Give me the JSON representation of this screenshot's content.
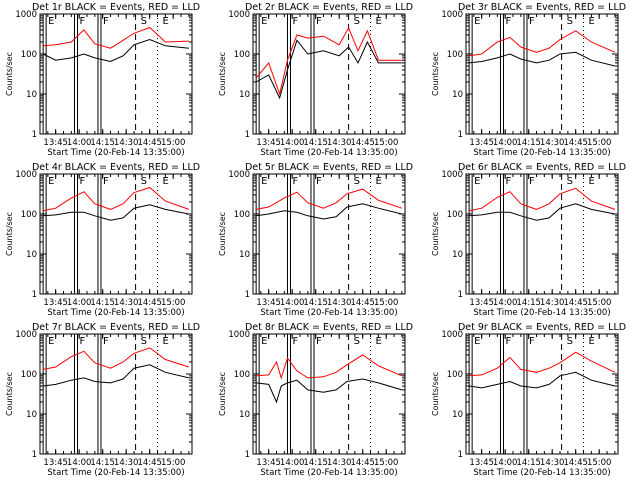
{
  "figure": {
    "background": "#ffffff",
    "event_color": "#000000",
    "lld_color": "#ff0000",
    "marker_color": "#000000"
  },
  "chart_data": [
    {
      "type": "line",
      "title": "Det 1r BLACK = Events, RED = LLD",
      "ylabel": "Counts/sec",
      "xlabel": "Start Time (20-Feb-14 13:35:00)",
      "y_scale": "log",
      "ylim": [
        1,
        1000
      ],
      "y_ticks": [
        "1",
        "10",
        "100",
        "1000"
      ],
      "x_ticks": [
        "13:45",
        "14:00",
        "14:15",
        "14:30",
        "14:45",
        "15:00"
      ],
      "time_markers": [
        {
          "label": "E",
          "time": "13:37"
        },
        {
          "label": "F",
          "time": "13:57"
        },
        {
          "label": "F",
          "time": "14:12"
        },
        {
          "label": "S",
          "time": "14:36"
        },
        {
          "label": "E",
          "time": "14:50"
        }
      ],
      "series": [
        {
          "name": "Events",
          "color": "#000000",
          "x": [
            "13:37",
            "13:45",
            "13:55",
            "14:03",
            "14:10",
            "14:20",
            "14:28",
            "14:35",
            "14:45",
            "14:55",
            "15:10"
          ],
          "y": [
            100,
            70,
            80,
            100,
            80,
            65,
            90,
            170,
            230,
            160,
            140
          ]
        },
        {
          "name": "LLD",
          "color": "#ff0000",
          "x": [
            "13:37",
            "13:45",
            "13:55",
            "14:03",
            "14:10",
            "14:20",
            "14:28",
            "14:35",
            "14:45",
            "14:55",
            "15:10"
          ],
          "y": [
            160,
            170,
            200,
            400,
            180,
            140,
            220,
            330,
            460,
            200,
            210
          ]
        }
      ]
    },
    {
      "type": "line",
      "title": "Det 2r BLACK = Events, RED = LLD",
      "ylabel": "Counts/sec",
      "xlabel": "Start Time (20-Feb-14 13:35:00)",
      "y_scale": "log",
      "ylim": [
        1,
        1000
      ],
      "y_ticks": [
        "1",
        "10",
        "100",
        "1000"
      ],
      "x_ticks": [
        "13:45",
        "14:00",
        "14:15",
        "14:30",
        "14:45",
        "15:00"
      ],
      "time_markers": [
        {
          "label": "E",
          "time": "13:37"
        },
        {
          "label": "F",
          "time": "13:57"
        },
        {
          "label": "F",
          "time": "14:12"
        },
        {
          "label": "S",
          "time": "14:36"
        },
        {
          "label": "E",
          "time": "14:50"
        }
      ],
      "series": [
        {
          "name": "Events",
          "color": "#000000",
          "x": [
            "13:37",
            "13:45",
            "13:52",
            "13:57",
            "14:03",
            "14:10",
            "14:20",
            "14:30",
            "14:36",
            "14:42",
            "14:48",
            "14:55",
            "15:10"
          ],
          "y": [
            20,
            30,
            8,
            40,
            220,
            100,
            120,
            90,
            150,
            60,
            200,
            60,
            60
          ]
        },
        {
          "name": "LLD",
          "color": "#ff0000",
          "x": [
            "13:37",
            "13:45",
            "13:52",
            "13:57",
            "14:03",
            "14:10",
            "14:20",
            "14:30",
            "14:36",
            "14:42",
            "14:48",
            "14:55",
            "15:10"
          ],
          "y": [
            25,
            60,
            10,
            70,
            300,
            250,
            280,
            170,
            450,
            120,
            380,
            70,
            70
          ]
        }
      ]
    },
    {
      "type": "line",
      "title": "Det 3r BLACK = Events, RED = LLD",
      "ylabel": "Counts/sec",
      "xlabel": "Start Time (20-Feb-14 13:35:00)",
      "y_scale": "log",
      "ylim": [
        1,
        1000
      ],
      "y_ticks": [
        "1",
        "10",
        "100",
        "1000"
      ],
      "x_ticks": [
        "13:45",
        "14:00",
        "14:15",
        "14:30",
        "14:45",
        "15:00"
      ],
      "time_markers": [
        {
          "label": "E",
          "time": "13:37"
        },
        {
          "label": "F",
          "time": "13:57"
        },
        {
          "label": "F",
          "time": "14:12"
        },
        {
          "label": "S",
          "time": "14:36"
        },
        {
          "label": "E",
          "time": "14:50"
        }
      ],
      "series": [
        {
          "name": "Events",
          "color": "#000000",
          "x": [
            "13:37",
            "13:45",
            "13:55",
            "14:03",
            "14:10",
            "14:20",
            "14:28",
            "14:35",
            "14:45",
            "14:55",
            "15:10"
          ],
          "y": [
            60,
            65,
            80,
            100,
            75,
            60,
            70,
            100,
            110,
            70,
            50
          ]
        },
        {
          "name": "LLD",
          "color": "#ff0000",
          "x": [
            "13:37",
            "13:45",
            "13:55",
            "14:03",
            "14:10",
            "14:20",
            "14:28",
            "14:35",
            "14:45",
            "14:55",
            "15:10"
          ],
          "y": [
            90,
            100,
            200,
            260,
            150,
            110,
            140,
            230,
            380,
            200,
            110
          ]
        }
      ]
    },
    {
      "type": "line",
      "title": "Det 4r BLACK = Events, RED = LLD",
      "ylabel": "Counts/sec",
      "xlabel": "Start Time (20-Feb-14 13:35:00)",
      "y_scale": "log",
      "ylim": [
        1,
        1000
      ],
      "y_ticks": [
        "1",
        "10",
        "100",
        "1000"
      ],
      "x_ticks": [
        "13:45",
        "14:00",
        "14:15",
        "14:30",
        "14:45",
        "15:00"
      ],
      "time_markers": [
        {
          "label": "E",
          "time": "13:37"
        },
        {
          "label": "F",
          "time": "13:57"
        },
        {
          "label": "F",
          "time": "14:12"
        },
        {
          "label": "S",
          "time": "14:36"
        },
        {
          "label": "E",
          "time": "14:50"
        }
      ],
      "series": [
        {
          "name": "Events",
          "color": "#000000",
          "x": [
            "13:37",
            "13:45",
            "13:55",
            "14:03",
            "14:10",
            "14:20",
            "14:28",
            "14:35",
            "14:45",
            "14:55",
            "15:10"
          ],
          "y": [
            90,
            95,
            110,
            110,
            90,
            70,
            80,
            140,
            170,
            130,
            100
          ]
        },
        {
          "name": "LLD",
          "color": "#ff0000",
          "x": [
            "13:37",
            "13:45",
            "13:55",
            "14:03",
            "14:10",
            "14:20",
            "14:28",
            "14:35",
            "14:45",
            "14:55",
            "15:10"
          ],
          "y": [
            120,
            140,
            250,
            360,
            180,
            130,
            180,
            340,
            460,
            210,
            130
          ]
        }
      ]
    },
    {
      "type": "line",
      "title": "Det 5r BLACK = Events, RED = LLD",
      "ylabel": "Counts/sec",
      "xlabel": "Start Time (20-Feb-14 13:35:00)",
      "y_scale": "log",
      "ylim": [
        1,
        1000
      ],
      "y_ticks": [
        "1",
        "10",
        "100",
        "1000"
      ],
      "x_ticks": [
        "13:45",
        "14:00",
        "14:15",
        "14:30",
        "14:45",
        "15:00"
      ],
      "time_markers": [
        {
          "label": "E",
          "time": "13:37"
        },
        {
          "label": "F",
          "time": "13:57"
        },
        {
          "label": "F",
          "time": "14:12"
        },
        {
          "label": "S",
          "time": "14:36"
        },
        {
          "label": "E",
          "time": "14:50"
        }
      ],
      "series": [
        {
          "name": "Events",
          "color": "#000000",
          "x": [
            "13:37",
            "13:45",
            "13:55",
            "14:03",
            "14:10",
            "14:20",
            "14:28",
            "14:35",
            "14:45",
            "14:55",
            "15:10"
          ],
          "y": [
            90,
            100,
            120,
            110,
            90,
            75,
            85,
            150,
            180,
            140,
            100
          ]
        },
        {
          "name": "LLD",
          "color": "#ff0000",
          "x": [
            "13:37",
            "13:45",
            "13:55",
            "14:03",
            "14:10",
            "14:20",
            "14:28",
            "14:35",
            "14:45",
            "14:55",
            "15:10"
          ],
          "y": [
            130,
            150,
            250,
            350,
            190,
            140,
            190,
            320,
            420,
            220,
            140
          ]
        }
      ]
    },
    {
      "type": "line",
      "title": "Det 6r BLACK = Events, RED = LLD",
      "ylabel": "Counts/sec",
      "xlabel": "Start Time (20-Feb-14 13:35:00)",
      "y_scale": "log",
      "ylim": [
        1,
        1000
      ],
      "y_ticks": [
        "1",
        "10",
        "100",
        "1000"
      ],
      "x_ticks": [
        "13:45",
        "14:00",
        "14:15",
        "14:30",
        "14:45",
        "15:00"
      ],
      "time_markers": [
        {
          "label": "E",
          "time": "13:37"
        },
        {
          "label": "F",
          "time": "13:57"
        },
        {
          "label": "F",
          "time": "14:12"
        },
        {
          "label": "S",
          "time": "14:36"
        },
        {
          "label": "E",
          "time": "14:50"
        }
      ],
      "series": [
        {
          "name": "Events",
          "color": "#000000",
          "x": [
            "13:37",
            "13:45",
            "13:55",
            "14:03",
            "14:10",
            "14:20",
            "14:28",
            "14:35",
            "14:45",
            "14:55",
            "15:10"
          ],
          "y": [
            90,
            95,
            110,
            110,
            90,
            70,
            80,
            140,
            180,
            130,
            100
          ]
        },
        {
          "name": "LLD",
          "color": "#ff0000",
          "x": [
            "13:37",
            "13:45",
            "13:55",
            "14:03",
            "14:10",
            "14:20",
            "14:28",
            "14:35",
            "14:45",
            "14:55",
            "15:10"
          ],
          "y": [
            120,
            140,
            260,
            360,
            180,
            130,
            180,
            320,
            440,
            210,
            130
          ]
        }
      ]
    },
    {
      "type": "line",
      "title": "Det 7r BLACK = Events, RED = LLD",
      "ylabel": "Counts/sec",
      "xlabel": "Start Time (20-Feb-14 13:35:00)",
      "y_scale": "log",
      "ylim": [
        1,
        1000
      ],
      "y_ticks": [
        "1",
        "10",
        "100",
        "1000"
      ],
      "x_ticks": [
        "13:45",
        "14:00",
        "14:15",
        "14:30",
        "14:45",
        "15:00"
      ],
      "time_markers": [
        {
          "label": "E",
          "time": "13:37"
        },
        {
          "label": "F",
          "time": "13:57"
        },
        {
          "label": "F",
          "time": "14:12"
        },
        {
          "label": "S",
          "time": "14:36"
        },
        {
          "label": "E",
          "time": "14:50"
        }
      ],
      "series": [
        {
          "name": "Events",
          "color": "#000000",
          "x": [
            "13:37",
            "13:45",
            "13:55",
            "14:03",
            "14:10",
            "14:20",
            "14:28",
            "14:35",
            "14:45",
            "14:55",
            "15:10"
          ],
          "y": [
            50,
            55,
            70,
            80,
            65,
            60,
            75,
            140,
            170,
            110,
            80
          ]
        },
        {
          "name": "LLD",
          "color": "#ff0000",
          "x": [
            "13:37",
            "13:45",
            "13:55",
            "14:03",
            "14:10",
            "14:20",
            "14:28",
            "14:35",
            "14:45",
            "14:55",
            "15:10"
          ],
          "y": [
            130,
            150,
            270,
            370,
            190,
            140,
            200,
            330,
            450,
            230,
            150
          ]
        }
      ]
    },
    {
      "type": "line",
      "title": "Det 8r BLACK = Events, RED = LLD",
      "ylabel": "Counts/sec",
      "xlabel": "Start Time (20-Feb-14 13:35:00)",
      "y_scale": "log",
      "ylim": [
        1,
        1000
      ],
      "y_ticks": [
        "1",
        "10",
        "100",
        "1000"
      ],
      "x_ticks": [
        "13:45",
        "14:00",
        "14:15",
        "14:30",
        "14:45",
        "15:00"
      ],
      "time_markers": [
        {
          "label": "E",
          "time": "13:37"
        },
        {
          "label": "F",
          "time": "13:57"
        },
        {
          "label": "F",
          "time": "14:12"
        },
        {
          "label": "S",
          "time": "14:36"
        },
        {
          "label": "E",
          "time": "14:50"
        }
      ],
      "series": [
        {
          "name": "Events",
          "color": "#000000",
          "x": [
            "13:37",
            "13:45",
            "13:50",
            "13:53",
            "13:57",
            "14:03",
            "14:10",
            "14:20",
            "14:28",
            "14:35",
            "14:45",
            "14:55",
            "15:10"
          ],
          "y": [
            60,
            55,
            20,
            50,
            60,
            70,
            40,
            35,
            40,
            65,
            75,
            60,
            40
          ]
        },
        {
          "name": "LLD",
          "color": "#ff0000",
          "x": [
            "13:37",
            "13:45",
            "13:50",
            "13:53",
            "13:57",
            "14:03",
            "14:10",
            "14:20",
            "14:28",
            "14:35",
            "14:45",
            "14:55",
            "15:10"
          ],
          "y": [
            90,
            95,
            200,
            80,
            250,
            120,
            80,
            85,
            110,
            170,
            300,
            160,
            90
          ]
        }
      ]
    },
    {
      "type": "line",
      "title": "Det 9r BLACK = Events, RED = LLD",
      "ylabel": "Counts/sec",
      "xlabel": "Start Time (20-Feb-14 13:35:00)",
      "y_scale": "log",
      "ylim": [
        1,
        1000
      ],
      "y_ticks": [
        "1",
        "10",
        "100",
        "1000"
      ],
      "x_ticks": [
        "13:45",
        "14:00",
        "14:15",
        "14:30",
        "14:45",
        "15:00"
      ],
      "time_markers": [
        {
          "label": "E",
          "time": "13:37"
        },
        {
          "label": "F",
          "time": "13:57"
        },
        {
          "label": "F",
          "time": "14:12"
        },
        {
          "label": "S",
          "time": "14:36"
        },
        {
          "label": "E",
          "time": "14:50"
        }
      ],
      "series": [
        {
          "name": "Events",
          "color": "#000000",
          "x": [
            "13:37",
            "13:45",
            "13:55",
            "14:03",
            "14:10",
            "14:20",
            "14:28",
            "14:35",
            "14:45",
            "14:55",
            "15:10"
          ],
          "y": [
            50,
            45,
            55,
            65,
            50,
            45,
            55,
            90,
            110,
            70,
            50
          ]
        },
        {
          "name": "LLD",
          "color": "#ff0000",
          "x": [
            "13:37",
            "13:45",
            "13:55",
            "14:03",
            "14:10",
            "14:20",
            "14:28",
            "14:35",
            "14:45",
            "14:55",
            "15:10"
          ],
          "y": [
            90,
            95,
            140,
            260,
            130,
            110,
            140,
            190,
            350,
            210,
            110
          ]
        }
      ]
    }
  ]
}
